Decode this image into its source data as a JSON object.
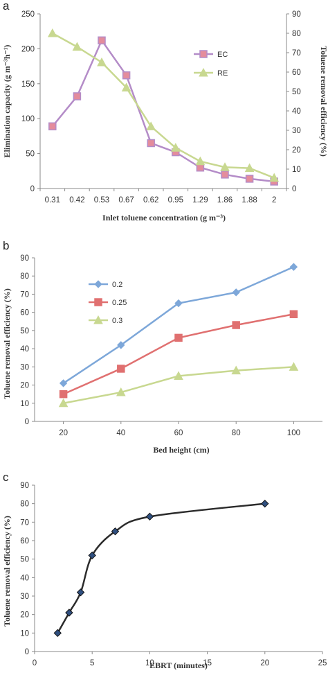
{
  "chart_data": [
    {
      "type": "line",
      "panel_label": "a",
      "categories": [
        "0.31",
        "0.42",
        "0.53",
        "0.67",
        "0.62",
        "0.95",
        "1.29",
        "1.86",
        "1.88",
        "2"
      ],
      "series": [
        {
          "name": "EC",
          "axis": "left",
          "color": "#b48cc8",
          "marker_fill": "#e48c9c",
          "marker": "square",
          "values": [
            89,
            132,
            212,
            162,
            65,
            52,
            30,
            20,
            14,
            10
          ]
        },
        {
          "name": "RE",
          "axis": "right",
          "color": "#c8d890",
          "marker_fill": "#c8d890",
          "marker": "triangle",
          "values": [
            80,
            73,
            65,
            52,
            32,
            21,
            14,
            11,
            10.5,
            5.5
          ]
        }
      ],
      "xlabel": "Inlet toluene concentration (g m⁻³)",
      "ylabel": "Elimination capacity (g m⁻³h⁻¹)",
      "y2label": "Toluene removal efficiency (%)",
      "ylim": [
        0,
        250
      ],
      "yticks": [
        0,
        50,
        100,
        150,
        200,
        250
      ],
      "y2lim": [
        0,
        90
      ],
      "y2ticks": [
        0,
        10,
        20,
        30,
        40,
        50,
        60,
        70,
        80,
        90
      ],
      "legend_position": "right"
    },
    {
      "type": "line",
      "panel_label": "b",
      "x": [
        20,
        40,
        60,
        80,
        100
      ],
      "series": [
        {
          "name": "0.2",
          "color": "#7da7d9",
          "marker": "diamond",
          "values": [
            21,
            42,
            65,
            71,
            85
          ]
        },
        {
          "name": "0.25",
          "color": "#e07070",
          "marker": "square",
          "values": [
            15,
            29,
            46,
            53,
            59
          ]
        },
        {
          "name": "0.3",
          "color": "#c8d890",
          "marker": "triangle",
          "values": [
            10,
            16,
            25,
            28,
            30
          ]
        }
      ],
      "xlabel": "Bed height (cm)",
      "ylabel": "Toluene removal efficiency (%)",
      "xlim": [
        10,
        110
      ],
      "xticks": [
        20,
        40,
        60,
        80,
        100
      ],
      "ylim": [
        0,
        90
      ],
      "yticks": [
        0,
        10,
        20,
        30,
        40,
        50,
        60,
        70,
        80,
        90
      ],
      "legend_position": "top-left"
    },
    {
      "type": "line",
      "panel_label": "c",
      "x": [
        2,
        3,
        4,
        5,
        7,
        10,
        20
      ],
      "series": [
        {
          "color": "#2b2b2b",
          "marker": "diamond",
          "marker_fill": "#2f4f7f",
          "values": [
            10,
            21,
            32,
            52,
            65,
            73,
            80
          ]
        }
      ],
      "xlabel": "EBRT (minutes)",
      "ylabel": "Toluene removal efficiency (%)",
      "xlim": [
        0,
        25
      ],
      "xticks": [
        0,
        5,
        10,
        15,
        20,
        25
      ],
      "ylim": [
        0,
        90
      ],
      "yticks": [
        0,
        10,
        20,
        30,
        40,
        50,
        60,
        70,
        80,
        90
      ]
    }
  ]
}
